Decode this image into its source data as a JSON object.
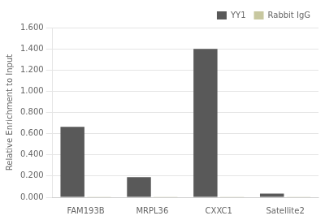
{
  "chart_data": {
    "type": "bar",
    "categories": [
      "FAM193B",
      "MRPL36",
      "CXXC1",
      "Satellite2"
    ],
    "series": [
      {
        "name": "YY1",
        "color": "#595959",
        "values": [
          0.665,
          0.19,
          1.4,
          0.035
        ]
      },
      {
        "name": "Rabbit IgG",
        "color": "#c8c8a0",
        "values": [
          0.005,
          0.005,
          0.005,
          0.005
        ]
      }
    ],
    "ylabel": "Relative Enrichment to Input",
    "ylim": [
      0.0,
      1.6
    ],
    "yticks": [
      {
        "value": 0.0,
        "label": "0.000"
      },
      {
        "value": 0.2,
        "label": "0.200"
      },
      {
        "value": 0.4,
        "label": "0.400"
      },
      {
        "value": 0.6,
        "label": "0.600"
      },
      {
        "value": 0.8,
        "label": "0.800"
      },
      {
        "value": 1.0,
        "label": "1.000"
      },
      {
        "value": 1.2,
        "label": "1.200"
      },
      {
        "value": 1.4,
        "label": "1.400"
      },
      {
        "value": 1.6,
        "label": "1.600"
      }
    ],
    "grid": true,
    "legend": "upper right"
  }
}
